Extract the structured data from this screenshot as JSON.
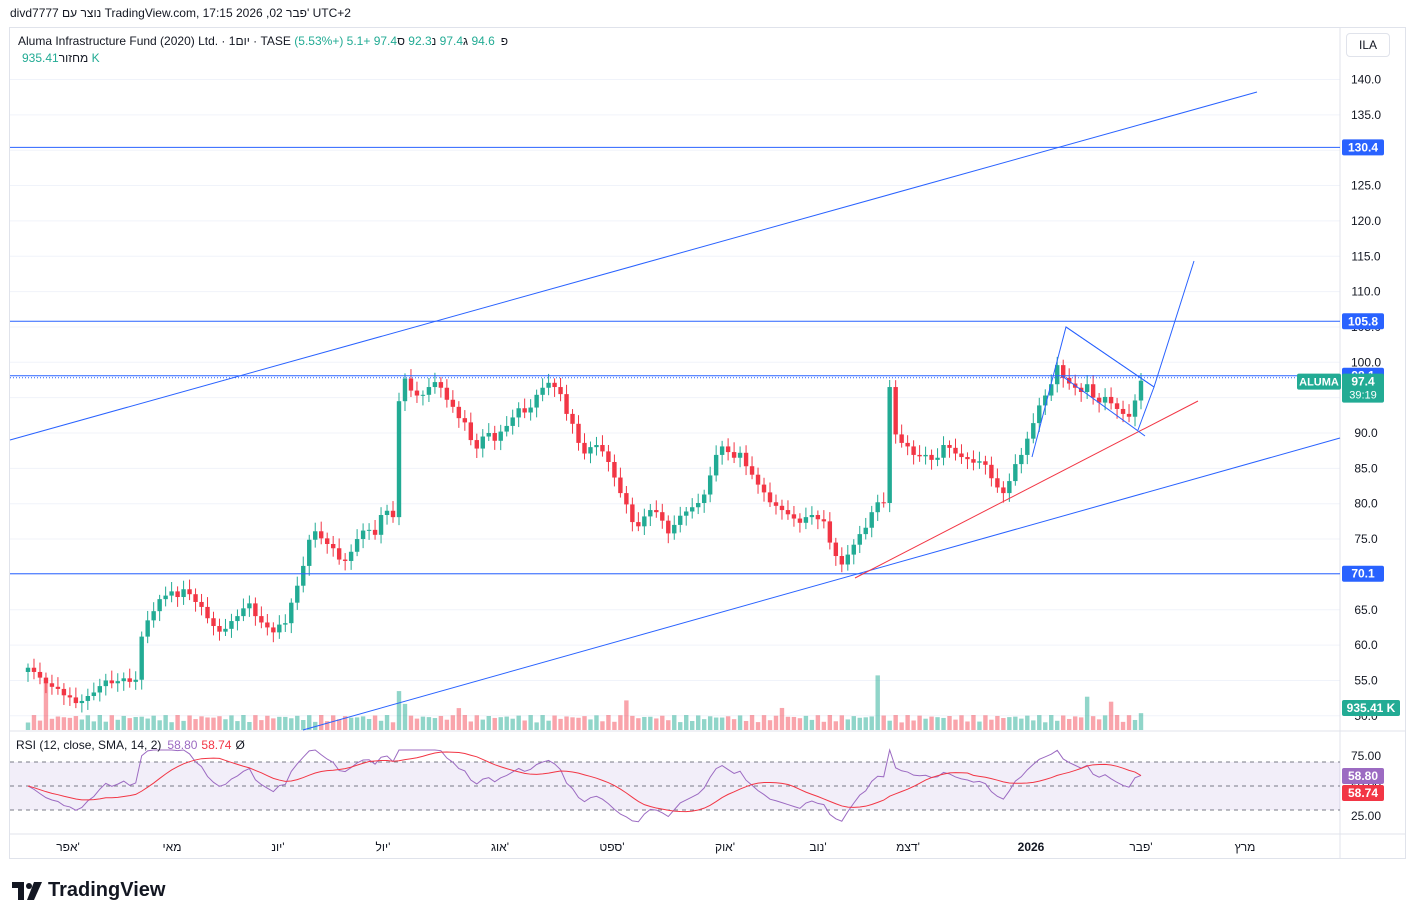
{
  "header": {
    "caption": "divd7777 נוצר עם TradingView.com, 17:15 2026 ,02 פבר' UTC+2"
  },
  "legend": {
    "symbol": "Aluma Infrastructure Fund (2020) Ltd. · 1יום · TASE",
    "open_label": "פ",
    "open": "94.6",
    "high_label": "ג",
    "high": "97.4",
    "low_label": "נ",
    "low": "92.3",
    "close_label": "ס",
    "close": "97.4",
    "change": "+5.1 (+5.53%)"
  },
  "volume_legend": {
    "label": "מחזור",
    "value": "935.41 K"
  },
  "currency_button": "ILA",
  "rsi_legend": {
    "label": "RSI (12, close, SMA, 14, 2)",
    "rsi_value": "58.80",
    "ma_value": "58.74",
    "symbol": "Ø"
  },
  "price_scale": {
    "labels": [
      "140.0",
      "135.0",
      "130.0",
      "125.0",
      "120.0",
      "115.0",
      "110.0",
      "105.0",
      "100.0",
      "95.0",
      "90.0",
      "85.0",
      "80.0",
      "75.0",
      "70.0",
      "65.0",
      "60.0",
      "55.0",
      "50.0"
    ],
    "tags": [
      {
        "text": "130.4",
        "color": "#2962ff"
      },
      {
        "text": "105.8",
        "color": "#2962ff"
      },
      {
        "text": "98.1",
        "color": "#2962ff"
      },
      {
        "text": "70.1",
        "color": "#2962ff"
      }
    ],
    "current": {
      "symbol": "ALUMA",
      "price": "97.4",
      "countdown": "39:19",
      "color": "#22ab94"
    },
    "volume_tag": {
      "text": "935.41 K",
      "color": "#22ab94"
    }
  },
  "rsi_scale": {
    "labels": [
      "75.00",
      "50.00",
      "25.00"
    ],
    "tags": [
      {
        "text": "58.80",
        "color": "#9c6bc2"
      },
      {
        "text": "58.74",
        "color": "#f23645"
      }
    ]
  },
  "time_axis": [
    "אפר'",
    "מאי",
    "יונ'",
    "יול'",
    "אוג'",
    "ספט'",
    "אוק'",
    "נוב'",
    "דצמ'",
    "2026",
    "פבר'",
    "מרץ"
  ],
  "branding": {
    "name": "TradingView"
  },
  "colors": {
    "up": "#22ab94",
    "down": "#f23645",
    "line": "#2962ff",
    "trend_red": "#f23645",
    "rsi": "#9c6bc2"
  },
  "chart_data": {
    "type": "candlestick",
    "symbol": "ALUMA",
    "ylim": [
      50,
      140
    ],
    "horizontal_levels": [
      130.4,
      105.8,
      98.1,
      70.1
    ],
    "closes": [
      56.8,
      56.2,
      55.4,
      54.6,
      54.1,
      53.8,
      52.9,
      52.6,
      51.8,
      52.1,
      52.8,
      53.3,
      54.2,
      55.0,
      54.6,
      54.9,
      55.3,
      54.8,
      55.1,
      61.2,
      63.5,
      64.8,
      66.5,
      67.0,
      67.6,
      66.8,
      67.9,
      67.2,
      66.1,
      65.4,
      63.8,
      62.7,
      61.9,
      62.3,
      63.4,
      64.1,
      65.2,
      65.9,
      64.1,
      63.2,
      62.5,
      61.8,
      62.9,
      63.1,
      66.0,
      68.4,
      71.2,
      74.9,
      76.1,
      75.1,
      74.3,
      73.7,
      72.1,
      71.9,
      73.2,
      75.0,
      76.2,
      76.3,
      75.6,
      78.4,
      79.0,
      78.1,
      94.5,
      97.7,
      96.0,
      95.3,
      95.4,
      96.5,
      97.2,
      96.4,
      94.7,
      93.7,
      92.1,
      91.5,
      89.0,
      87.8,
      89.5,
      90.0,
      88.9,
      90.2,
      91.0,
      92.2,
      93.5,
      92.9,
      93.6,
      95.4,
      96.4,
      97.1,
      96.5,
      95.5,
      92.7,
      91.3,
      88.6,
      87.1,
      88.0,
      88.3,
      87.4,
      85.9,
      83.7,
      81.5,
      79.9,
      77.4,
      76.8,
      78.2,
      79.1,
      78.8,
      77.6,
      75.8,
      77.0,
      78.3,
      78.9,
      79.5,
      80.1,
      81.3,
      84.0,
      86.9,
      88.1,
      87.3,
      86.5,
      87.2,
      85.3,
      84.1,
      82.7,
      81.6,
      80.2,
      79.7,
      79.1,
      78.5,
      77.9,
      77.3,
      78.1,
      78.4,
      77.8,
      77.5,
      74.5,
      72.6,
      71.4,
      72.8,
      74.2,
      75.7,
      76.6,
      78.8,
      80.2,
      80.1,
      96.5,
      89.8,
      88.6,
      88.1,
      86.9,
      86.7,
      86.9,
      86.2,
      86.5,
      88.3,
      87.9,
      87.1,
      86.6,
      86.3,
      85.8,
      86.0,
      85.5,
      83.6,
      82.3,
      81.5,
      83.2,
      85.6,
      86.9,
      89.2,
      91.4,
      93.9,
      95.3,
      96.9,
      99.6,
      97.8,
      97.0,
      96.4,
      95.8,
      96.9,
      95.0,
      94.3,
      95.1,
      94.2,
      93.4,
      92.7,
      92.3,
      94.6,
      97.4
    ],
    "volume_ylim": [
      0,
      3000000
    ],
    "volume_latest": 935410,
    "rsi": {
      "ylim": [
        25,
        75
      ],
      "levels": [
        70,
        50,
        30
      ],
      "rsi_latest": 58.8,
      "ma_latest": 58.74
    }
  }
}
